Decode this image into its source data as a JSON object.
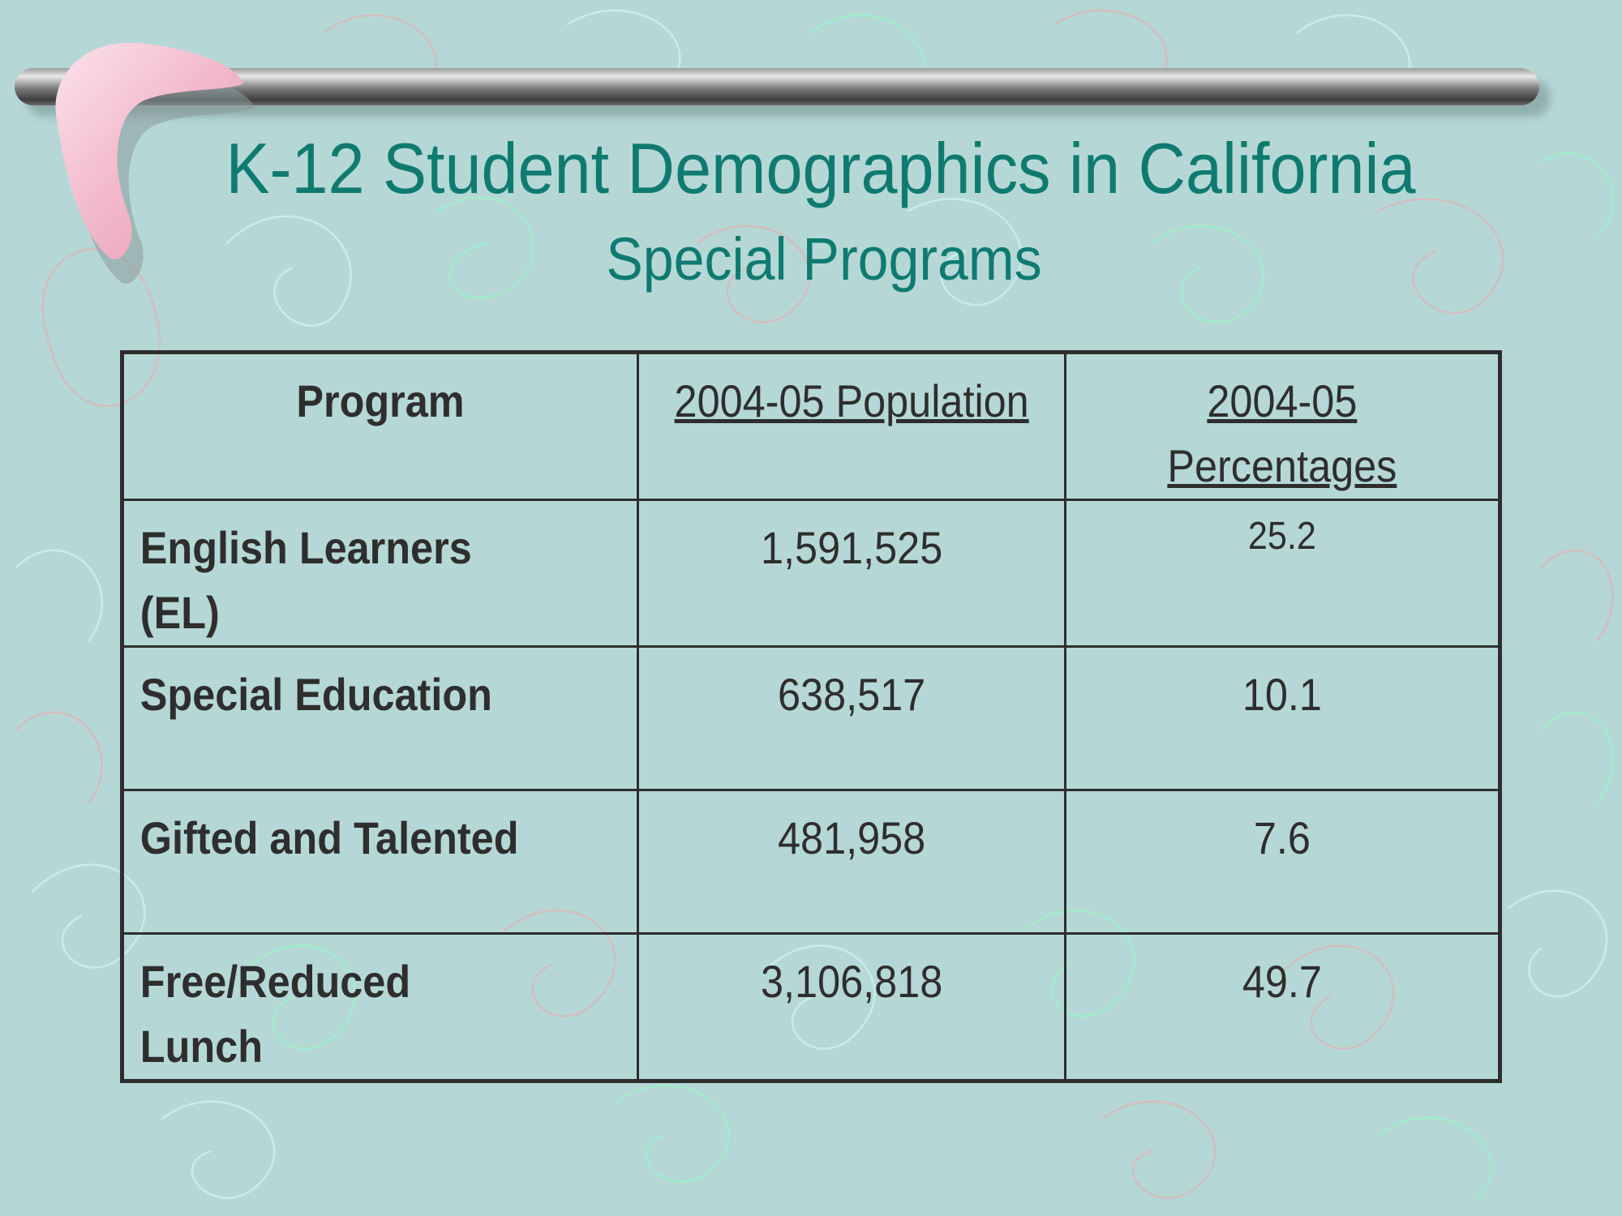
{
  "title": "K-12 Student Demographics in California",
  "subtitle": "Special Programs",
  "table": {
    "headers": [
      "Program",
      "2004-05 Population",
      "2004-05 Percentages"
    ],
    "rows": [
      {
        "program_line1": "English Learners",
        "program_line2": "(EL)",
        "population": "1,591,525",
        "percentage": "25.2"
      },
      {
        "program_line1": "Special Education",
        "program_line2": "",
        "population": "638,517",
        "percentage": "10.1"
      },
      {
        "program_line1": "Gifted and Talented",
        "program_line2": "",
        "population": "481,958",
        "percentage": "7.6"
      },
      {
        "program_line1": "Free/Reduced",
        "program_line2": "Lunch",
        "population": "3,106,818",
        "percentage": "49.7"
      }
    ]
  },
  "colors": {
    "background": "#b5d8d6",
    "title": "#0f7a70",
    "text": "#2e2e2e",
    "boomerang": "#f2b8cb"
  },
  "icons": [
    "boomerang-icon",
    "rod-decoration"
  ]
}
